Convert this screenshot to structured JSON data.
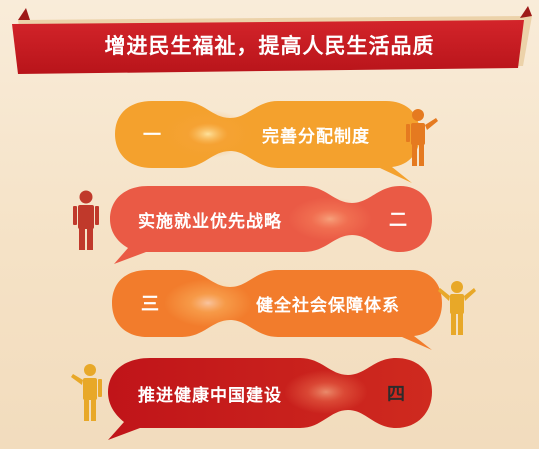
{
  "header": {
    "title": "增进民生福祉，提高人民生活品质"
  },
  "items": [
    {
      "number": "一",
      "label": "完善分配制度",
      "color": "#f4a12d"
    },
    {
      "number": "二",
      "label": "实施就业优先战略",
      "color": "#ea5a45"
    },
    {
      "number": "三",
      "label": "健全社会保障体系",
      "color": "#f27c2c"
    },
    {
      "number": "四",
      "label": "推进健康中国建设",
      "color": "#c8181e"
    }
  ],
  "colors": {
    "banner": "#c61c1e",
    "banner_shadow": "#e6c79a",
    "background": "#f7e6cc",
    "person_dark_red": "#c0392b",
    "person_orange": "#e57a20",
    "person_yellow": "#e8a828"
  }
}
